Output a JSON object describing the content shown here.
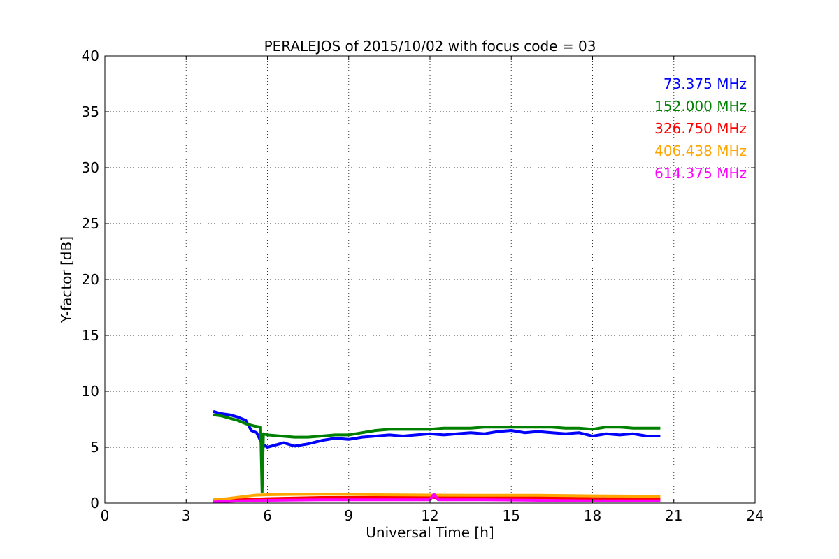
{
  "chart_data": {
    "type": "line",
    "title": "PERALEJOS of 2015/10/02 with focus code = 03",
    "xlabel": "Universal Time [h]",
    "ylabel": "Y-factor [dB]",
    "xlim": [
      0,
      24
    ],
    "ylim": [
      0,
      40
    ],
    "xticks": [
      0,
      3,
      6,
      9,
      12,
      15,
      18,
      21,
      24
    ],
    "yticks": [
      0,
      5,
      10,
      15,
      20,
      25,
      30,
      35,
      40
    ],
    "grid": true,
    "legend_position": "top-right",
    "series": [
      {
        "name": "73.375 MHz",
        "color": "#0000ff",
        "x": [
          4.0,
          4.3,
          4.6,
          4.9,
          5.2,
          5.4,
          5.6,
          5.8,
          6.0,
          6.3,
          6.6,
          7.0,
          7.5,
          8.0,
          8.5,
          9.0,
          9.5,
          10.0,
          10.5,
          11.0,
          11.5,
          12.0,
          12.5,
          13.0,
          13.5,
          14.0,
          14.5,
          15.0,
          15.5,
          16.0,
          16.5,
          17.0,
          17.5,
          18.0,
          18.5,
          19.0,
          19.5,
          20.0,
          20.5
        ],
        "y": [
          8.2,
          8.0,
          7.9,
          7.7,
          7.4,
          6.5,
          6.3,
          5.3,
          5.0,
          5.2,
          5.4,
          5.1,
          5.3,
          5.6,
          5.8,
          5.7,
          5.9,
          6.0,
          6.1,
          6.0,
          6.1,
          6.2,
          6.1,
          6.2,
          6.3,
          6.2,
          6.4,
          6.5,
          6.3,
          6.4,
          6.3,
          6.2,
          6.3,
          6.0,
          6.2,
          6.1,
          6.2,
          6.0,
          6.0
        ]
      },
      {
        "name": "152.000 MHz",
        "color": "#008000",
        "x": [
          4.0,
          4.3,
          4.6,
          4.9,
          5.2,
          5.5,
          5.75,
          5.8,
          5.85,
          6.0,
          6.5,
          7.0,
          7.5,
          8.0,
          8.5,
          9.0,
          9.5,
          10.0,
          10.5,
          11.0,
          11.5,
          12.0,
          12.5,
          13.0,
          13.5,
          14.0,
          14.5,
          15.0,
          15.5,
          16.0,
          16.5,
          17.0,
          17.5,
          18.0,
          18.5,
          19.0,
          19.5,
          20.0,
          20.5
        ],
        "y": [
          7.9,
          7.8,
          7.6,
          7.4,
          7.1,
          6.9,
          6.8,
          1.0,
          6.2,
          6.1,
          6.0,
          5.9,
          5.9,
          6.0,
          6.1,
          6.1,
          6.3,
          6.5,
          6.6,
          6.6,
          6.6,
          6.6,
          6.7,
          6.7,
          6.7,
          6.8,
          6.8,
          6.8,
          6.8,
          6.8,
          6.8,
          6.7,
          6.7,
          6.6,
          6.8,
          6.8,
          6.7,
          6.7,
          6.7
        ]
      },
      {
        "name": "326.750 MHz",
        "color": "#ff0000",
        "x": [
          4.0,
          5.0,
          6.0,
          8.0,
          10.0,
          12.0,
          14.0,
          16.0,
          18.0,
          20.0,
          20.5
        ],
        "y": [
          0.2,
          0.3,
          0.4,
          0.5,
          0.5,
          0.5,
          0.5,
          0.5,
          0.4,
          0.4,
          0.4
        ]
      },
      {
        "name": "406.438 MHz",
        "color": "#ffa500",
        "x": [
          4.0,
          4.5,
          5.0,
          5.5,
          6.0,
          7.0,
          8.0,
          9.0,
          10.0,
          12.0,
          14.0,
          16.0,
          18.0,
          20.0,
          20.5
        ],
        "y": [
          0.3,
          0.4,
          0.55,
          0.7,
          0.75,
          0.78,
          0.8,
          0.78,
          0.75,
          0.72,
          0.7,
          0.7,
          0.65,
          0.62,
          0.6
        ]
      },
      {
        "name": "614.375 MHz",
        "color": "#ff00ff",
        "x": [
          4.0,
          5.0,
          6.0,
          8.0,
          10.0,
          12.0,
          12.15,
          12.3,
          14.0,
          16.0,
          18.0,
          20.0,
          20.5
        ],
        "y": [
          0.1,
          0.2,
          0.25,
          0.3,
          0.3,
          0.3,
          0.8,
          0.3,
          0.3,
          0.25,
          0.2,
          0.2,
          0.2
        ]
      }
    ]
  }
}
